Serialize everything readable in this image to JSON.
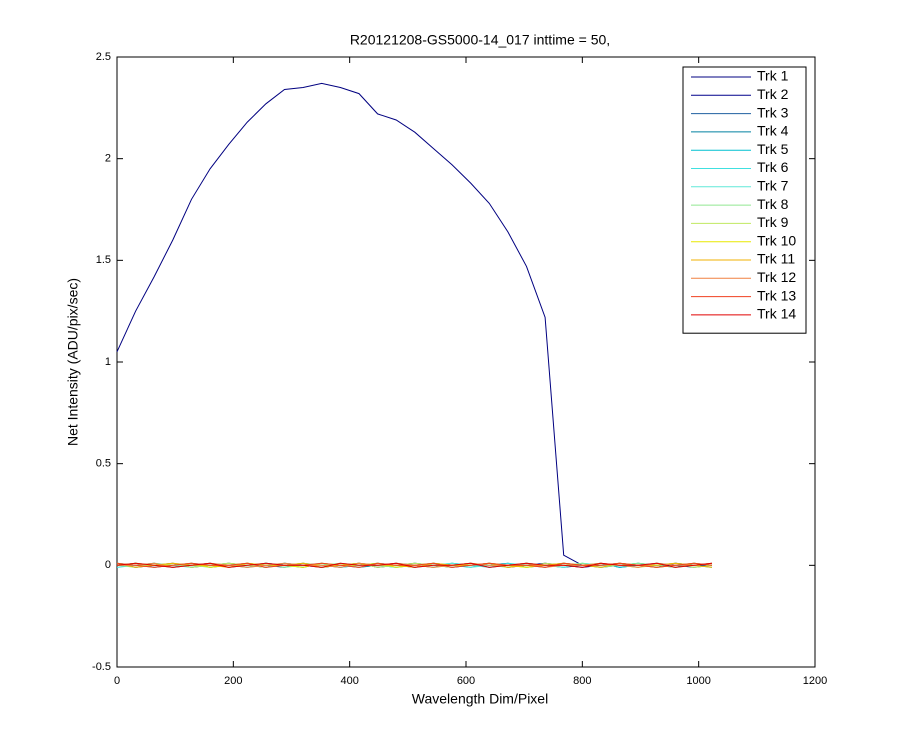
{
  "chart_data": {
    "type": "line",
    "title": "R20121208-GS5000-14_017 inttime = 50,",
    "x_label": "Wavelength Dim/Pixel",
    "y_label": "Net Intensity (ADU/pix/sec)",
    "x": [
      0,
      32,
      64,
      96,
      128,
      160,
      192,
      224,
      256,
      288,
      320,
      352,
      384,
      416,
      448,
      480,
      512,
      544,
      576,
      608,
      640,
      672,
      704,
      736,
      768,
      800,
      832,
      864,
      896,
      928,
      960,
      992,
      1023
    ],
    "series": [
      {
        "name": "Trk 1",
        "color": "#000080",
        "values": [
          1.05,
          1.25,
          1.42,
          1.6,
          1.8,
          1.95,
          2.07,
          2.18,
          2.27,
          2.34,
          2.35,
          2.37,
          2.35,
          2.32,
          2.22,
          2.19,
          2.13,
          2.05,
          1.97,
          1.88,
          1.78,
          1.64,
          1.47,
          1.22,
          0.05,
          0.0,
          0.0,
          0.0,
          0.0,
          0.0,
          0.0,
          0.0,
          0.0
        ]
      },
      {
        "name": "Trk 2",
        "color": "#00008b",
        "values": [
          0.01,
          -0.01,
          0.0,
          0.01,
          -0.01,
          0.0,
          0.01,
          0.0,
          -0.01,
          0.01,
          0.0,
          -0.01,
          0.0,
          0.01,
          -0.01,
          0.0,
          0.01,
          0.0,
          -0.01,
          0.0,
          0.01,
          -0.01,
          0.0,
          0.01,
          0.0,
          -0.01,
          0.0,
          0.01,
          0.0,
          -0.01,
          0.01,
          0.0,
          0.0
        ]
      },
      {
        "name": "Trk 3",
        "color": "#1f5fa0",
        "values": [
          0.0,
          0.01,
          -0.01,
          0.0,
          0.01,
          -0.01,
          0.0,
          0.01,
          0.0,
          -0.01,
          0.01,
          0.0,
          -0.01,
          0.0,
          0.01,
          0.0,
          -0.01,
          0.01,
          0.0,
          0.01,
          -0.01,
          0.0,
          0.01,
          0.0,
          -0.01,
          0.0,
          0.01,
          -0.01,
          0.0,
          0.01,
          0.0,
          -0.01,
          0.0
        ]
      },
      {
        "name": "Trk 4",
        "color": "#0080a0",
        "values": [
          0.01,
          0.0,
          0.01,
          -0.01,
          0.0,
          0.01,
          -0.01,
          0.0,
          0.01,
          0.0,
          -0.01,
          0.01,
          0.0,
          -0.01,
          0.0,
          0.01,
          0.0,
          -0.01,
          0.01,
          0.0,
          0.0,
          0.01,
          -0.01,
          0.0,
          0.01,
          0.0,
          -0.01,
          0.0,
          0.01,
          0.0,
          -0.01,
          0.01,
          0.0
        ]
      },
      {
        "name": "Trk 5",
        "color": "#00c0d0",
        "values": [
          0.0,
          0.01,
          0.0,
          -0.01,
          0.01,
          0.0,
          0.0,
          -0.01,
          0.01,
          0.0,
          0.01,
          -0.01,
          0.0,
          0.01,
          0.0,
          -0.01,
          0.0,
          0.01,
          0.0,
          -0.01,
          0.01,
          0.0,
          0.0,
          -0.01,
          0.01,
          0.0,
          0.01,
          -0.01,
          0.0,
          0.0,
          0.01,
          0.0,
          -0.01
        ]
      },
      {
        "name": "Trk 6",
        "color": "#40e0e0",
        "values": [
          -0.01,
          0.0,
          0.01,
          0.0,
          -0.01,
          0.01,
          0.0,
          0.0,
          -0.01,
          0.01,
          0.0,
          0.01,
          -0.01,
          0.0,
          0.01,
          0.0,
          -0.01,
          0.0,
          0.01,
          0.0,
          -0.01,
          0.01,
          0.0,
          0.0,
          -0.01,
          0.01,
          0.0,
          0.0,
          0.01,
          -0.01,
          0.0,
          0.01,
          0.0
        ]
      },
      {
        "name": "Trk 7",
        "color": "#60e8d8",
        "values": [
          0.01,
          0.0,
          -0.01,
          0.01,
          0.0,
          0.0,
          0.01,
          -0.01,
          0.0,
          0.01,
          0.0,
          -0.01,
          0.01,
          0.0,
          0.0,
          -0.01,
          0.01,
          0.0,
          0.01,
          -0.01,
          0.0,
          0.0,
          0.01,
          0.0,
          -0.01,
          0.01,
          0.0,
          0.0,
          -0.01,
          0.01,
          0.0,
          0.0,
          0.01
        ]
      },
      {
        "name": "Trk 8",
        "color": "#90e890",
        "values": [
          0.0,
          -0.01,
          0.01,
          0.0,
          0.0,
          -0.01,
          0.01,
          0.0,
          0.01,
          -0.01,
          0.0,
          0.0,
          0.01,
          -0.01,
          0.01,
          0.0,
          0.0,
          -0.01,
          0.0,
          0.01,
          0.0,
          -0.01,
          0.01,
          0.0,
          0.0,
          0.01,
          -0.01,
          0.0,
          0.01,
          0.0,
          -0.01,
          0.0,
          0.01
        ]
      },
      {
        "name": "Trk 9",
        "color": "#c0e860",
        "values": [
          0.01,
          0.0,
          0.0,
          0.01,
          -0.01,
          0.0,
          0.01,
          0.0,
          -0.01,
          0.0,
          0.01,
          0.0,
          0.0,
          0.01,
          -0.01,
          0.0,
          0.01,
          0.0,
          -0.01,
          0.01,
          0.0,
          0.0,
          -0.01,
          0.01,
          0.0,
          0.0,
          0.01,
          0.0,
          -0.01,
          0.0,
          0.01,
          -0.01,
          0.0
        ]
      },
      {
        "name": "Trk 10",
        "color": "#e8e800",
        "values": [
          0.0,
          0.01,
          0.0,
          0.0,
          0.01,
          -0.01,
          0.0,
          0.01,
          0.0,
          0.0,
          -0.01,
          0.01,
          0.0,
          0.0,
          0.01,
          -0.01,
          0.0,
          0.01,
          0.0,
          0.0,
          0.01,
          0.0,
          -0.01,
          0.0,
          0.01,
          0.0,
          0.0,
          0.01,
          0.0,
          -0.01,
          0.0,
          0.01,
          0.0
        ]
      },
      {
        "name": "Trk 11",
        "color": "#f0b000",
        "values": [
          0.01,
          -0.01,
          0.0,
          0.01,
          0.0,
          0.0,
          -0.01,
          0.01,
          0.0,
          0.0,
          0.01,
          -0.01,
          0.0,
          0.01,
          0.0,
          0.0,
          -0.01,
          0.01,
          0.0,
          0.0,
          0.01,
          -0.01,
          0.0,
          0.0,
          0.01,
          0.0,
          -0.01,
          0.01,
          0.0,
          0.0,
          0.01,
          0.0,
          -0.01
        ]
      },
      {
        "name": "Trk 12",
        "color": "#f08040",
        "values": [
          0.0,
          0.0,
          0.01,
          -0.01,
          0.0,
          0.01,
          0.0,
          -0.01,
          0.0,
          0.01,
          0.0,
          0.0,
          -0.01,
          0.01,
          0.0,
          0.01,
          0.0,
          -0.01,
          0.0,
          0.01,
          0.0,
          0.0,
          0.01,
          -0.01,
          0.0,
          0.0,
          0.01,
          0.0,
          -0.01,
          0.01,
          0.0,
          0.0,
          0.01
        ]
      },
      {
        "name": "Trk 13",
        "color": "#f04020",
        "values": [
          0.01,
          0.0,
          -0.01,
          0.0,
          0.01,
          0.0,
          0.0,
          0.01,
          -0.01,
          0.0,
          0.0,
          0.01,
          0.0,
          -0.01,
          0.01,
          0.0,
          0.0,
          0.01,
          -0.01,
          0.0,
          0.01,
          0.0,
          0.0,
          -0.01,
          0.01,
          0.0,
          0.0,
          0.01,
          0.0,
          -0.01,
          0.0,
          0.01,
          0.0
        ]
      },
      {
        "name": "Trk 14",
        "color": "#e00000",
        "values": [
          0.0,
          0.01,
          0.0,
          -0.01,
          0.0,
          0.01,
          -0.01,
          0.0,
          0.01,
          0.0,
          0.0,
          -0.01,
          0.01,
          0.0,
          0.0,
          0.01,
          -0.01,
          0.0,
          0.0,
          0.01,
          -0.01,
          0.0,
          0.01,
          0.0,
          0.0,
          -0.01,
          0.01,
          0.0,
          0.0,
          0.01,
          -0.01,
          0.0,
          0.01
        ]
      }
    ],
    "xlim": [
      0,
      1200
    ],
    "xticks": [
      0,
      200,
      400,
      600,
      800,
      1000,
      1200
    ],
    "ylim": [
      -0.5,
      2.5
    ],
    "yticks": [
      -0.5,
      0,
      0.5,
      1,
      1.5,
      2,
      2.5
    ],
    "legend": "northeast"
  }
}
